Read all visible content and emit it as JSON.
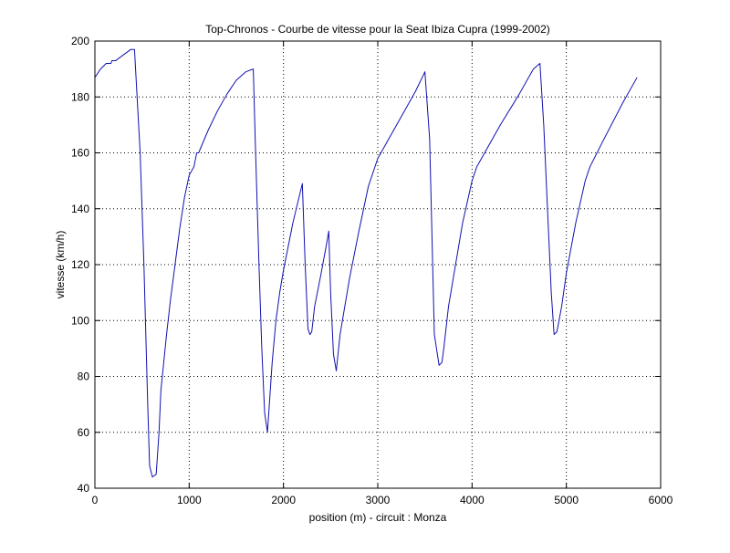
{
  "chart_data": {
    "type": "line",
    "title": "Top-Chronos - Courbe de vitesse pour la Seat Ibiza Cupra (1999-2002)",
    "xlabel": "position (m) - circuit : Monza",
    "ylabel": "vitesse (km/h)",
    "xlim": [
      0,
      6000
    ],
    "ylim": [
      40,
      200
    ],
    "xticks": [
      0,
      1000,
      2000,
      3000,
      4000,
      5000,
      6000
    ],
    "yticks": [
      40,
      60,
      80,
      100,
      120,
      140,
      160,
      180,
      200
    ],
    "xtick_labels": [
      "0",
      "1000",
      "2000",
      "3000",
      "4000",
      "5000",
      "6000"
    ],
    "ytick_labels": [
      "40",
      "60",
      "80",
      "100",
      "120",
      "140",
      "160",
      "180",
      "200"
    ],
    "grid": true,
    "series": [
      {
        "color": "#1010b0",
        "x": [
          0,
          60,
          120,
          170,
          180,
          220,
          300,
          380,
          420,
          480,
          520,
          560,
          580,
          610,
          650,
          680,
          700,
          760,
          800,
          850,
          900,
          950,
          1000,
          1050,
          1080,
          1100,
          1200,
          1300,
          1400,
          1500,
          1600,
          1680,
          1700,
          1740,
          1770,
          1800,
          1830,
          1860,
          1880,
          1920,
          1960,
          2000,
          2100,
          2200,
          2230,
          2260,
          2280,
          2300,
          2330,
          2400,
          2460,
          2480,
          2500,
          2530,
          2560,
          2600,
          2700,
          2800,
          2900,
          2940,
          3000,
          3200,
          3400,
          3500,
          3550,
          3600,
          3650,
          3680,
          3700,
          3750,
          3800,
          3900,
          4000,
          4050,
          4100,
          4300,
          4500,
          4650,
          4720,
          4760,
          4800,
          4840,
          4870,
          4900,
          4950,
          5000,
          5100,
          5200,
          5250,
          5400,
          5600,
          5750
        ],
        "y": [
          187,
          190,
          192,
          192,
          193,
          193,
          195,
          197,
          197,
          160,
          120,
          70,
          48,
          44,
          45,
          60,
          75,
          95,
          107,
          120,
          133,
          144,
          152,
          155,
          160,
          160,
          168,
          175,
          181,
          186,
          189,
          190,
          165,
          120,
          90,
          67,
          60,
          75,
          85,
          100,
          110,
          118,
          135,
          149,
          120,
          97,
          95,
          96,
          105,
          117,
          128,
          132,
          110,
          88,
          82,
          95,
          115,
          132,
          148,
          152,
          158,
          170,
          182,
          189,
          165,
          95,
          84,
          85,
          90,
          105,
          115,
          135,
          150,
          155,
          158,
          170,
          181,
          190,
          192,
          170,
          140,
          110,
          95,
          96,
          105,
          117,
          135,
          150,
          155,
          165,
          178,
          187
        ]
      }
    ]
  }
}
